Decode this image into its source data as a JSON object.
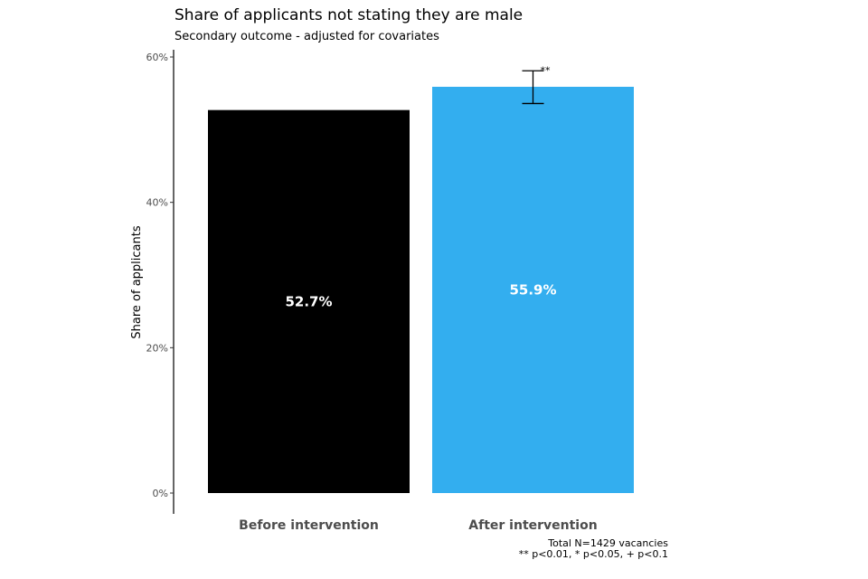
{
  "chart_data": {
    "type": "bar",
    "title": "Share of applicants not stating they are male",
    "subtitle": "Secondary outcome - adjusted for covariates",
    "ylabel": "Share of applicants",
    "xlabel": "",
    "categories": [
      "Before intervention",
      "After intervention"
    ],
    "values": [
      52.7,
      55.9
    ],
    "value_labels": [
      "52.7%",
      "55.9%"
    ],
    "colors": [
      "#000000",
      "#33aeef"
    ],
    "error_bar": {
      "category_index": 1,
      "low": 53.6,
      "high": 58.1,
      "significance": "**"
    },
    "ylim": [
      0,
      60
    ],
    "yticks": [
      0,
      20,
      40,
      60
    ],
    "ytick_labels": [
      "0%",
      "20%",
      "40%",
      "60%"
    ],
    "grid": false,
    "legend": "none",
    "caption_lines": [
      "Total N=1429 vacancies",
      "** p<0.01, * p<0.05, + p<0.1"
    ]
  }
}
